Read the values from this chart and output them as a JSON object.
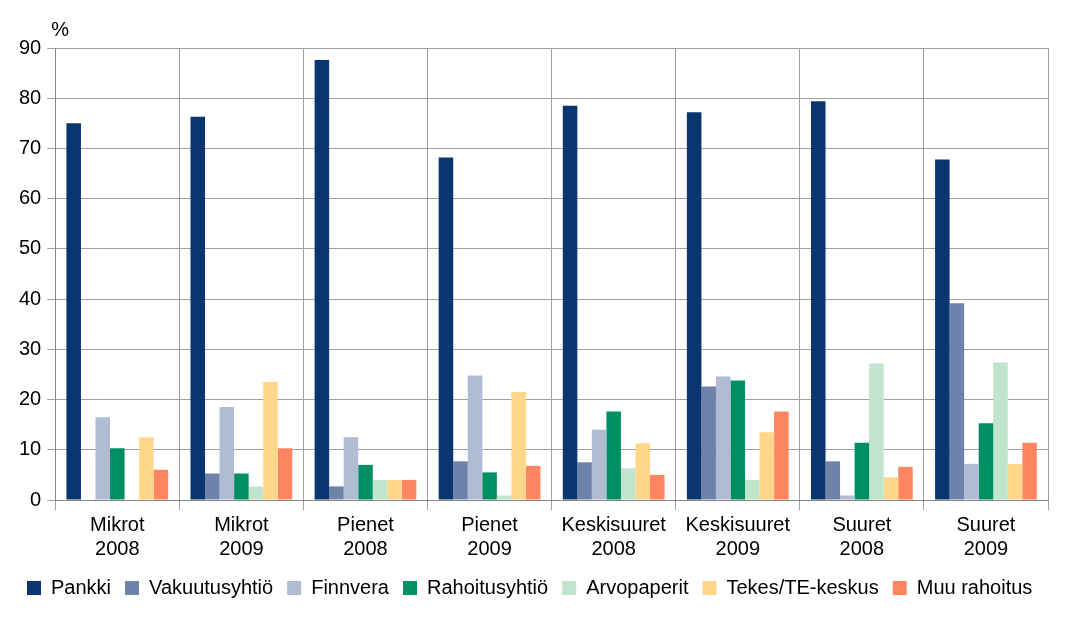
{
  "chart_data": {
    "type": "bar",
    "ylabel": "%",
    "categories": [
      "Mikrot 2008",
      "Mikrot 2009",
      "Pienet 2008",
      "Pienet 2009",
      "Keskisuuret 2008",
      "Keskisuuret 2009",
      "Suuret 2008",
      "Suuret 2009"
    ],
    "series": [
      {
        "name": "Pankki",
        "color": "#0a3670",
        "values": [
          75,
          76.3,
          87.6,
          68.2,
          78.5,
          77.2,
          79.4,
          67.8
        ]
      },
      {
        "name": "Vakuutusyhtiö",
        "color": "#6e82aa",
        "values": [
          0,
          5.3,
          2.7,
          7.7,
          7.5,
          22.6,
          7.7,
          39.2
        ]
      },
      {
        "name": "Finnvera",
        "color": "#b0bbd4",
        "values": [
          16.5,
          18.5,
          12.5,
          24.8,
          14,
          24.6,
          0.9,
          7.2
        ]
      },
      {
        "name": "Rahoitusyhtiö",
        "color": "#008f63",
        "values": [
          10.3,
          5.3,
          7,
          5.5,
          17.6,
          23.8,
          11.4,
          15.3
        ]
      },
      {
        "name": "Arvopaperit",
        "color": "#c0e4cc",
        "values": [
          0,
          2.7,
          4,
          0.9,
          6.3,
          4,
          27.2,
          27.4
        ]
      },
      {
        "name": "Tekes/TE-keskus",
        "color": "#ffd68a",
        "values": [
          12.5,
          23.5,
          4,
          21.5,
          11.3,
          13.5,
          4.5,
          7.2
        ]
      },
      {
        "name": "Muu rahoitus",
        "color": "#ff8660",
        "values": [
          6,
          10.3,
          4,
          6.8,
          5,
          17.6,
          6.6,
          11.4
        ]
      }
    ],
    "ylim": [
      0,
      90
    ],
    "yticks": [
      0,
      10,
      20,
      30,
      40,
      50,
      60,
      70,
      80,
      90
    ],
    "grid": true,
    "legend": "bottom"
  }
}
